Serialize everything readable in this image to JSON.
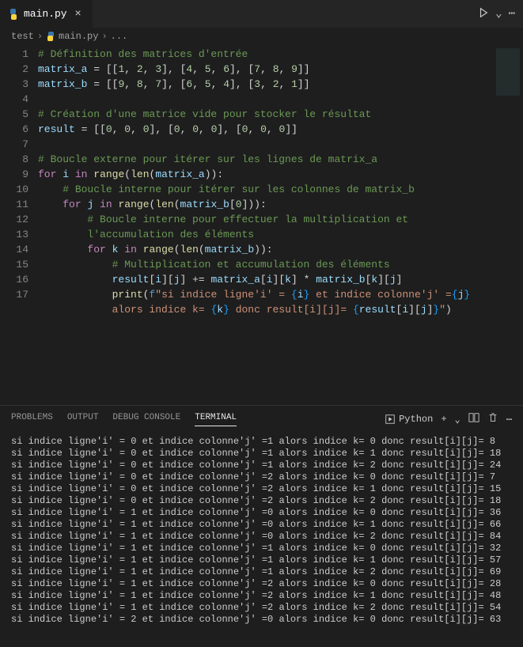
{
  "tab": {
    "filename": "main.py"
  },
  "breadcrumb": {
    "folder": "test",
    "file": "main.py",
    "symbol": "..."
  },
  "run_label": "Python",
  "panel_tabs": {
    "problems": "PROBLEMS",
    "output": "OUTPUT",
    "debug": "DEBUG CONSOLE",
    "terminal": "TERMINAL"
  },
  "colors": {
    "background": "#1e1e1e",
    "comment": "#6a9955",
    "variable": "#9cdcfe",
    "number": "#b5cea8",
    "keyword": "#c586c0",
    "function": "#dcdcaa",
    "string": "#ce9178",
    "constant": "#4fc1ff",
    "fstring": "#569cd6",
    "bracket_hl": "#179fff"
  },
  "code_lines": [
    {
      "n": 1,
      "indent": 0,
      "type": "comment",
      "text": "# Définition des matrices d'entrée"
    },
    {
      "n": 2,
      "indent": 0,
      "type": "assign",
      "var": "matrix_a",
      "rhs_nums": [
        [
          1,
          2,
          3
        ],
        [
          4,
          5,
          6
        ],
        [
          7,
          8,
          9
        ]
      ]
    },
    {
      "n": 3,
      "indent": 0,
      "type": "assign",
      "var": "matrix_b",
      "rhs_nums": [
        [
          9,
          8,
          7
        ],
        [
          6,
          5,
          4
        ],
        [
          3,
          2,
          1
        ]
      ]
    },
    {
      "n": 4,
      "indent": 0,
      "type": "blank"
    },
    {
      "n": 5,
      "indent": 0,
      "type": "comment",
      "text": "# Création d'une matrice vide pour stocker le résultat"
    },
    {
      "n": 6,
      "indent": 0,
      "type": "assign",
      "var": "result",
      "rhs_nums": [
        [
          0,
          0,
          0
        ],
        [
          0,
          0,
          0
        ],
        [
          0,
          0,
          0
        ]
      ]
    },
    {
      "n": 7,
      "indent": 0,
      "type": "blank"
    },
    {
      "n": 8,
      "indent": 0,
      "type": "comment",
      "text": "# Boucle externe pour itérer sur les lignes de matrix_a"
    },
    {
      "n": 9,
      "indent": 0,
      "type": "for",
      "var": "i",
      "range_arg": "len(matrix_a)"
    },
    {
      "n": 10,
      "indent": 1,
      "type": "comment",
      "text": "# Boucle interne pour itérer sur les colonnes de matrix_b"
    },
    {
      "n": 11,
      "indent": 1,
      "type": "for",
      "var": "j",
      "range_arg": "len(matrix_b[0])"
    },
    {
      "n": 12,
      "indent": 2,
      "type": "comment_wrap",
      "text1": "# Boucle interne pour effectuer la multiplication et",
      "text2": "l'accumulation des éléments"
    },
    {
      "n": 13,
      "indent": 2,
      "type": "for",
      "var": "k",
      "range_arg": "len(matrix_b)"
    },
    {
      "n": 14,
      "indent": 3,
      "type": "comment",
      "text": "# Multiplication et accumulation des éléments"
    },
    {
      "n": 15,
      "indent": 3,
      "type": "stmt",
      "text": "result[i][j] += matrix_a[i][k] * matrix_b[k][j]"
    },
    {
      "n": 16,
      "indent": 3,
      "type": "print_wrap",
      "t1": "print(f\"si indice ligne'i' = {i} et indice colonne'j' ={j}",
      "t2": "alors indice k= {k} donc result[i][j]= {result[i][j]}\")"
    },
    {
      "n": 17,
      "indent": 0,
      "type": "blank"
    }
  ],
  "terminal_output": [
    "si indice ligne'i' = 0 et indice colonne'j' =1 alors indice k= 0 donc result[i][j]= 8",
    "si indice ligne'i' = 0 et indice colonne'j' =1 alors indice k= 1 donc result[i][j]= 18",
    "si indice ligne'i' = 0 et indice colonne'j' =1 alors indice k= 2 donc result[i][j]= 24",
    "si indice ligne'i' = 0 et indice colonne'j' =2 alors indice k= 0 donc result[i][j]= 7",
    "si indice ligne'i' = 0 et indice colonne'j' =2 alors indice k= 1 donc result[i][j]= 15",
    "si indice ligne'i' = 0 et indice colonne'j' =2 alors indice k= 2 donc result[i][j]= 18",
    "si indice ligne'i' = 1 et indice colonne'j' =0 alors indice k= 0 donc result[i][j]= 36",
    "si indice ligne'i' = 1 et indice colonne'j' =0 alors indice k= 1 donc result[i][j]= 66",
    "si indice ligne'i' = 1 et indice colonne'j' =0 alors indice k= 2 donc result[i][j]= 84",
    "si indice ligne'i' = 1 et indice colonne'j' =1 alors indice k= 0 donc result[i][j]= 32",
    "si indice ligne'i' = 1 et indice colonne'j' =1 alors indice k= 1 donc result[i][j]= 57",
    "si indice ligne'i' = 1 et indice colonne'j' =1 alors indice k= 2 donc result[i][j]= 69",
    "si indice ligne'i' = 1 et indice colonne'j' =2 alors indice k= 0 donc result[i][j]= 28",
    "si indice ligne'i' = 1 et indice colonne'j' =2 alors indice k= 1 donc result[i][j]= 48",
    "si indice ligne'i' = 1 et indice colonne'j' =2 alors indice k= 2 donc result[i][j]= 54",
    "si indice ligne'i' = 2 et indice colonne'j' =0 alors indice k= 0 donc result[i][j]= 63"
  ]
}
